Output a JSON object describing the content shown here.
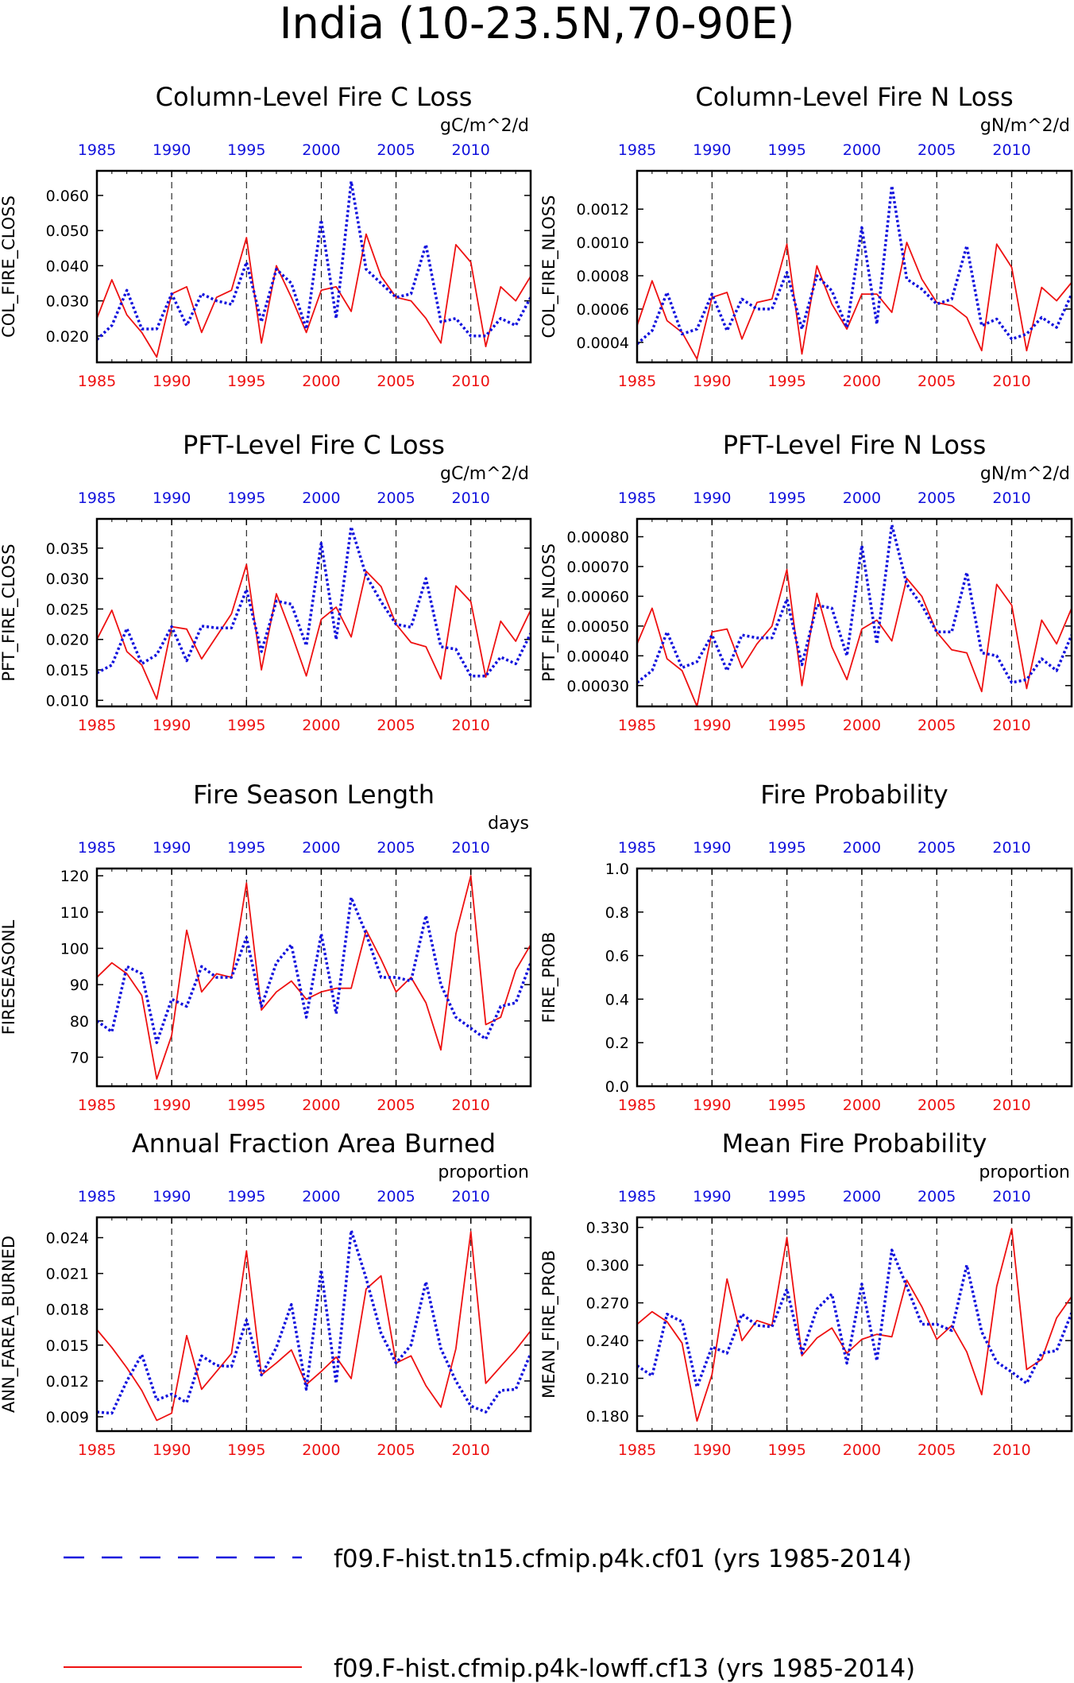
{
  "title": "India (10-23.5N,70-90E)",
  "colors": {
    "red": "#ee1111",
    "blue": "#1111dd",
    "frame": "#000000"
  },
  "legend": {
    "items": [
      {
        "label": "f09.F-hist.tn15.cfmip.p4k.cf01 (yrs 1985-2014)",
        "color": "#1111dd",
        "style": "dashed"
      },
      {
        "label": "f09.F-hist.cfmip.p4k-lowff.cf13 (yrs 1985-2014)",
        "color": "#ee1111",
        "style": "solid"
      }
    ]
  },
  "chart_data": [
    {
      "type": "line",
      "title": "Column-Level Fire C Loss",
      "units": "gC/m^2/d",
      "ylabel": "COL_FIRE_CLOSS",
      "xlim": [
        1985,
        2014
      ],
      "ylim": [
        0.0125,
        0.067
      ],
      "yticks": [
        "0.020",
        "0.030",
        "0.040",
        "0.050",
        "0.060"
      ],
      "xticks": [
        "1985",
        "1990",
        "1995",
        "2000",
        "2005",
        "2010"
      ],
      "x": [
        1985,
        1986,
        1987,
        1988,
        1989,
        1990,
        1991,
        1992,
        1993,
        1994,
        1995,
        1996,
        1997,
        1998,
        1999,
        2000,
        2001,
        2002,
        2003,
        2004,
        2005,
        2006,
        2007,
        2008,
        2009,
        2010,
        2011,
        2012,
        2013,
        2014
      ],
      "series": [
        {
          "color": "red",
          "values": [
            0.025,
            0.036,
            0.026,
            0.021,
            0.014,
            0.032,
            0.034,
            0.021,
            0.031,
            0.033,
            0.048,
            0.018,
            0.04,
            0.031,
            0.021,
            0.033,
            0.034,
            0.027,
            0.049,
            0.037,
            0.031,
            0.03,
            0.025,
            0.018,
            0.046,
            0.041,
            0.017,
            0.034,
            0.03,
            0.037
          ]
        },
        {
          "color": "blue",
          "values": [
            0.019,
            0.023,
            0.033,
            0.022,
            0.022,
            0.032,
            0.023,
            0.032,
            0.03,
            0.029,
            0.041,
            0.024,
            0.039,
            0.035,
            0.022,
            0.053,
            0.025,
            0.064,
            0.039,
            0.035,
            0.031,
            0.032,
            0.046,
            0.024,
            0.025,
            0.02,
            0.02,
            0.025,
            0.023,
            0.031
          ]
        }
      ]
    },
    {
      "type": "line",
      "title": "Column-Level Fire N Loss",
      "units": "gN/m^2/d",
      "ylabel": "COL_FIRE_NLOSS",
      "xlim": [
        1985,
        2014
      ],
      "ylim": [
        0.00028,
        0.00143
      ],
      "yticks": [
        "0.0004",
        "0.0006",
        "0.0008",
        "0.0010",
        "0.0012"
      ],
      "xticks": [
        "1985",
        "1990",
        "1995",
        "2000",
        "2005",
        "2010"
      ],
      "x": [
        1985,
        1986,
        1987,
        1988,
        1989,
        1990,
        1991,
        1992,
        1993,
        1994,
        1995,
        1996,
        1997,
        1998,
        1999,
        2000,
        2001,
        2002,
        2003,
        2004,
        2005,
        2006,
        2007,
        2008,
        2009,
        2010,
        2011,
        2012,
        2013,
        2014
      ],
      "series": [
        {
          "color": "red",
          "values": [
            0.0005,
            0.00077,
            0.00053,
            0.00046,
            0.0003,
            0.00067,
            0.0007,
            0.00042,
            0.00064,
            0.00066,
            0.00099,
            0.00033,
            0.00086,
            0.00063,
            0.00048,
            0.00069,
            0.00069,
            0.00058,
            0.001,
            0.00078,
            0.00064,
            0.00062,
            0.00055,
            0.00035,
            0.00099,
            0.00085,
            0.00035,
            0.00073,
            0.00065,
            0.00076
          ]
        },
        {
          "color": "blue",
          "values": [
            0.00039,
            0.00047,
            0.0007,
            0.00045,
            0.00048,
            0.00069,
            0.00047,
            0.00066,
            0.0006,
            0.0006,
            0.00082,
            0.00048,
            0.0008,
            0.00071,
            0.00049,
            0.00109,
            0.00051,
            0.00134,
            0.00078,
            0.00072,
            0.00063,
            0.00066,
            0.00098,
            0.0005,
            0.00054,
            0.00042,
            0.00045,
            0.00055,
            0.00049,
            0.00069
          ]
        }
      ]
    },
    {
      "type": "line",
      "title": "PFT-Level Fire C Loss",
      "units": "gC/m^2/d",
      "ylabel": "PFT_FIRE_CLOSS",
      "xlim": [
        1985,
        2014
      ],
      "ylim": [
        0.009,
        0.0398
      ],
      "yticks": [
        "0.010",
        "0.015",
        "0.020",
        "0.025",
        "0.030",
        "0.035"
      ],
      "xticks": [
        "1985",
        "1990",
        "1995",
        "2000",
        "2005",
        "2010"
      ],
      "x": [
        1985,
        1986,
        1987,
        1988,
        1989,
        1990,
        1991,
        1992,
        1993,
        1994,
        1995,
        1996,
        1997,
        1998,
        1999,
        2000,
        2001,
        2002,
        2003,
        2004,
        2005,
        2006,
        2007,
        2008,
        2009,
        2010,
        2011,
        2012,
        2013,
        2014
      ],
      "series": [
        {
          "color": "red",
          "values": [
            0.02,
            0.0248,
            0.018,
            0.0158,
            0.0102,
            0.0221,
            0.0217,
            0.0168,
            0.0205,
            0.0242,
            0.0323,
            0.015,
            0.0275,
            0.021,
            0.014,
            0.0233,
            0.0253,
            0.0204,
            0.0312,
            0.0287,
            0.0225,
            0.0195,
            0.0188,
            0.0135,
            0.0288,
            0.0262,
            0.0138,
            0.023,
            0.0197,
            0.0248
          ]
        },
        {
          "color": "blue",
          "values": [
            0.0145,
            0.0158,
            0.0218,
            0.016,
            0.0175,
            0.0221,
            0.0165,
            0.0222,
            0.0219,
            0.0219,
            0.0282,
            0.018,
            0.0263,
            0.0258,
            0.019,
            0.0358,
            0.02,
            0.0385,
            0.0305,
            0.0262,
            0.0225,
            0.022,
            0.03,
            0.0188,
            0.0184,
            0.014,
            0.014,
            0.0171,
            0.016,
            0.021
          ]
        }
      ]
    },
    {
      "type": "line",
      "title": "PFT-Level Fire N Loss",
      "units": "gN/m^2/d",
      "ylabel": "PFT_FIRE_NLOSS",
      "xlim": [
        1985,
        2014
      ],
      "ylim": [
        0.00023,
        0.00086
      ],
      "yticks": [
        "0.00030",
        "0.00040",
        "0.00050",
        "0.00060",
        "0.00070",
        "0.00080"
      ],
      "xticks": [
        "1985",
        "1990",
        "1995",
        "2000",
        "2005",
        "2010"
      ],
      "x": [
        1985,
        1986,
        1987,
        1988,
        1989,
        1990,
        1991,
        1992,
        1993,
        1994,
        1995,
        1996,
        1997,
        1998,
        1999,
        2000,
        2001,
        2002,
        2003,
        2004,
        2005,
        2006,
        2007,
        2008,
        2009,
        2010,
        2011,
        2012,
        2013,
        2014
      ],
      "series": [
        {
          "color": "red",
          "values": [
            0.00044,
            0.00056,
            0.00039,
            0.00035,
            0.00023,
            0.00048,
            0.00049,
            0.00036,
            0.00044,
            0.0005,
            0.00069,
            0.0003,
            0.00061,
            0.00043,
            0.00032,
            0.00049,
            0.00052,
            0.00045,
            0.00066,
            0.0006,
            0.00048,
            0.00042,
            0.00041,
            0.00028,
            0.00064,
            0.00057,
            0.00029,
            0.00052,
            0.00044,
            0.00056
          ]
        },
        {
          "color": "blue",
          "values": [
            0.00031,
            0.00035,
            0.00048,
            0.00036,
            0.00038,
            0.00047,
            0.00035,
            0.00047,
            0.00046,
            0.00046,
            0.00059,
            0.00037,
            0.00057,
            0.00056,
            0.0004,
            0.00077,
            0.00044,
            0.00084,
            0.00064,
            0.00057,
            0.00048,
            0.00048,
            0.00068,
            0.00041,
            0.0004,
            0.00031,
            0.00032,
            0.00039,
            0.00035,
            0.00047
          ]
        }
      ]
    },
    {
      "type": "line",
      "title": "Fire Season Length",
      "units": "days",
      "ylabel": "FIRESEASONL",
      "xlim": [
        1985,
        2014
      ],
      "ylim": [
        62,
        122
      ],
      "yticks": [
        "70",
        "80",
        "90",
        "100",
        "110",
        "120"
      ],
      "xticks": [
        "1985",
        "1990",
        "1995",
        "2000",
        "2005",
        "2010"
      ],
      "x": [
        1985,
        1986,
        1987,
        1988,
        1989,
        1990,
        1991,
        1992,
        1993,
        1994,
        1995,
        1996,
        1997,
        1998,
        1999,
        2000,
        2001,
        2002,
        2003,
        2004,
        2005,
        2006,
        2007,
        2008,
        2009,
        2010,
        2011,
        2012,
        2013,
        2014
      ],
      "series": [
        {
          "color": "red",
          "values": [
            92,
            96,
            93,
            87,
            64,
            76,
            105,
            88,
            93,
            92,
            118,
            83,
            88,
            91,
            86,
            88,
            89,
            89,
            105,
            97,
            88,
            92,
            85,
            72,
            104,
            120,
            79,
            81,
            94,
            101
          ]
        },
        {
          "color": "blue",
          "values": [
            80,
            77,
            95,
            93,
            74,
            86,
            84,
            95,
            92,
            92,
            103,
            84,
            96,
            101,
            81,
            104,
            82,
            114,
            104,
            92,
            92,
            91,
            109,
            90,
            81,
            78,
            75,
            84,
            85,
            96
          ]
        }
      ]
    },
    {
      "type": "line",
      "title": "Fire Probability",
      "units": "",
      "ylabel": "FIRE_PROB",
      "xlim": [
        1985,
        2014
      ],
      "ylim": [
        0.0,
        1.0
      ],
      "yticks": [
        "0.0",
        "0.2",
        "0.4",
        "0.6",
        "0.8",
        "1.0"
      ],
      "xticks": [
        "1985",
        "1990",
        "1995",
        "2000",
        "2005",
        "2010"
      ],
      "x": [],
      "series": []
    },
    {
      "type": "line",
      "title": "Annual Fraction Area Burned",
      "units": "proportion",
      "ylabel": "ANN_FAREA_BURNED",
      "xlim": [
        1985,
        2014
      ],
      "ylim": [
        0.0078,
        0.0257
      ],
      "yticks": [
        "0.009",
        "0.012",
        "0.015",
        "0.018",
        "0.021",
        "0.024"
      ],
      "xticks": [
        "1985",
        "1990",
        "1995",
        "2000",
        "2005",
        "2010"
      ],
      "x": [
        1985,
        1986,
        1987,
        1988,
        1989,
        1990,
        1991,
        1992,
        1993,
        1994,
        1995,
        1996,
        1997,
        1998,
        1999,
        2000,
        2001,
        2002,
        2003,
        2004,
        2005,
        2006,
        2007,
        2008,
        2009,
        2010,
        2011,
        2012,
        2013,
        2014
      ],
      "series": [
        {
          "color": "red",
          "values": [
            0.0163,
            0.0148,
            0.0131,
            0.0112,
            0.0087,
            0.0093,
            0.0158,
            0.0113,
            0.0128,
            0.0143,
            0.0229,
            0.0125,
            0.0135,
            0.0146,
            0.0117,
            0.0128,
            0.014,
            0.0122,
            0.0197,
            0.0208,
            0.0135,
            0.0141,
            0.0116,
            0.0098,
            0.0147,
            0.0245,
            0.0118,
            0.0132,
            0.0146,
            0.0162
          ]
        },
        {
          "color": "blue",
          "values": [
            0.0094,
            0.0093,
            0.012,
            0.0142,
            0.0104,
            0.0109,
            0.0102,
            0.0141,
            0.0133,
            0.0132,
            0.0171,
            0.0125,
            0.0148,
            0.0184,
            0.0113,
            0.0213,
            0.0118,
            0.0246,
            0.0206,
            0.016,
            0.0135,
            0.015,
            0.0203,
            0.0147,
            0.012,
            0.0099,
            0.0094,
            0.0112,
            0.0113,
            0.0143
          ]
        }
      ]
    },
    {
      "type": "line",
      "title": "Mean Fire Probability",
      "units": "proportion",
      "ylabel": "MEAN_FIRE_PROB",
      "xlim": [
        1985,
        2014
      ],
      "ylim": [
        0.168,
        0.338
      ],
      "yticks": [
        "0.180",
        "0.210",
        "0.240",
        "0.270",
        "0.300",
        "0.330"
      ],
      "xticks": [
        "1985",
        "1990",
        "1995",
        "2000",
        "2005",
        "2010"
      ],
      "x": [
        1985,
        1986,
        1987,
        1988,
        1989,
        1990,
        1991,
        1992,
        1993,
        1994,
        1995,
        1996,
        1997,
        1998,
        1999,
        2000,
        2001,
        2002,
        2003,
        2004,
        2005,
        2006,
        2007,
        2008,
        2009,
        2010,
        2011,
        2012,
        2013,
        2014
      ],
      "series": [
        {
          "color": "red",
          "values": [
            0.253,
            0.263,
            0.255,
            0.238,
            0.176,
            0.213,
            0.289,
            0.24,
            0.256,
            0.252,
            0.322,
            0.228,
            0.242,
            0.25,
            0.23,
            0.241,
            0.245,
            0.243,
            0.288,
            0.267,
            0.241,
            0.252,
            0.231,
            0.197,
            0.283,
            0.329,
            0.217,
            0.225,
            0.258,
            0.275
          ]
        },
        {
          "color": "blue",
          "values": [
            0.22,
            0.212,
            0.261,
            0.255,
            0.203,
            0.235,
            0.23,
            0.261,
            0.252,
            0.251,
            0.281,
            0.23,
            0.265,
            0.277,
            0.222,
            0.285,
            0.224,
            0.312,
            0.283,
            0.253,
            0.253,
            0.248,
            0.3,
            0.247,
            0.223,
            0.215,
            0.206,
            0.23,
            0.232,
            0.262
          ]
        }
      ]
    }
  ]
}
